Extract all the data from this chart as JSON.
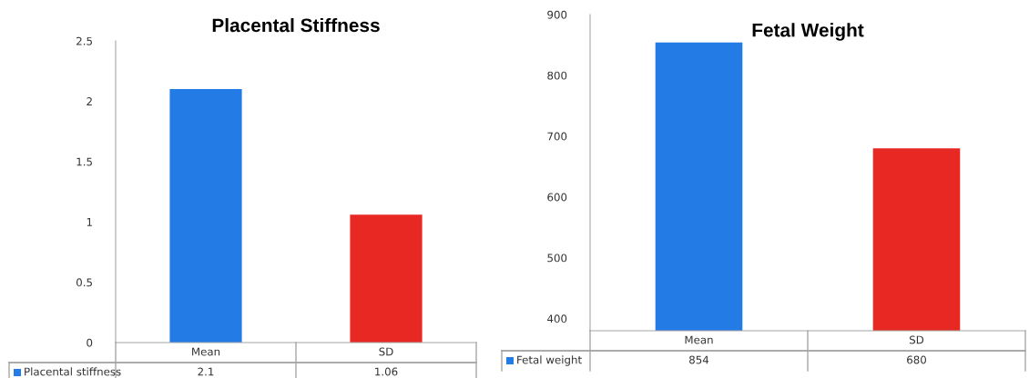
{
  "chart_data": [
    {
      "type": "bar",
      "title": "Placental Stiffness",
      "categories": [
        "Mean",
        "SD"
      ],
      "ylim": [
        0,
        2.5
      ],
      "yticks": [
        0,
        0.5,
        1,
        1.5,
        2,
        2.5
      ],
      "series": [
        {
          "name": "Placental stiffness",
          "color": "#237be6",
          "colors": [
            "#237be6",
            "#e82823"
          ],
          "values": [
            2.1,
            1.06
          ]
        }
      ],
      "data_labels": true,
      "grid": false
    },
    {
      "type": "bar",
      "title": "Fetal Weight",
      "categories": [
        "Mean",
        "SD"
      ],
      "ylim": [
        380,
        900
      ],
      "yticks": [
        400,
        500,
        600,
        700,
        800,
        900
      ],
      "series": [
        {
          "name": "Fetal weight",
          "color": "#237be6",
          "colors": [
            "#237be6",
            "#e82823"
          ],
          "values": [
            854,
            680
          ]
        }
      ],
      "data_labels": true,
      "grid": false
    }
  ]
}
